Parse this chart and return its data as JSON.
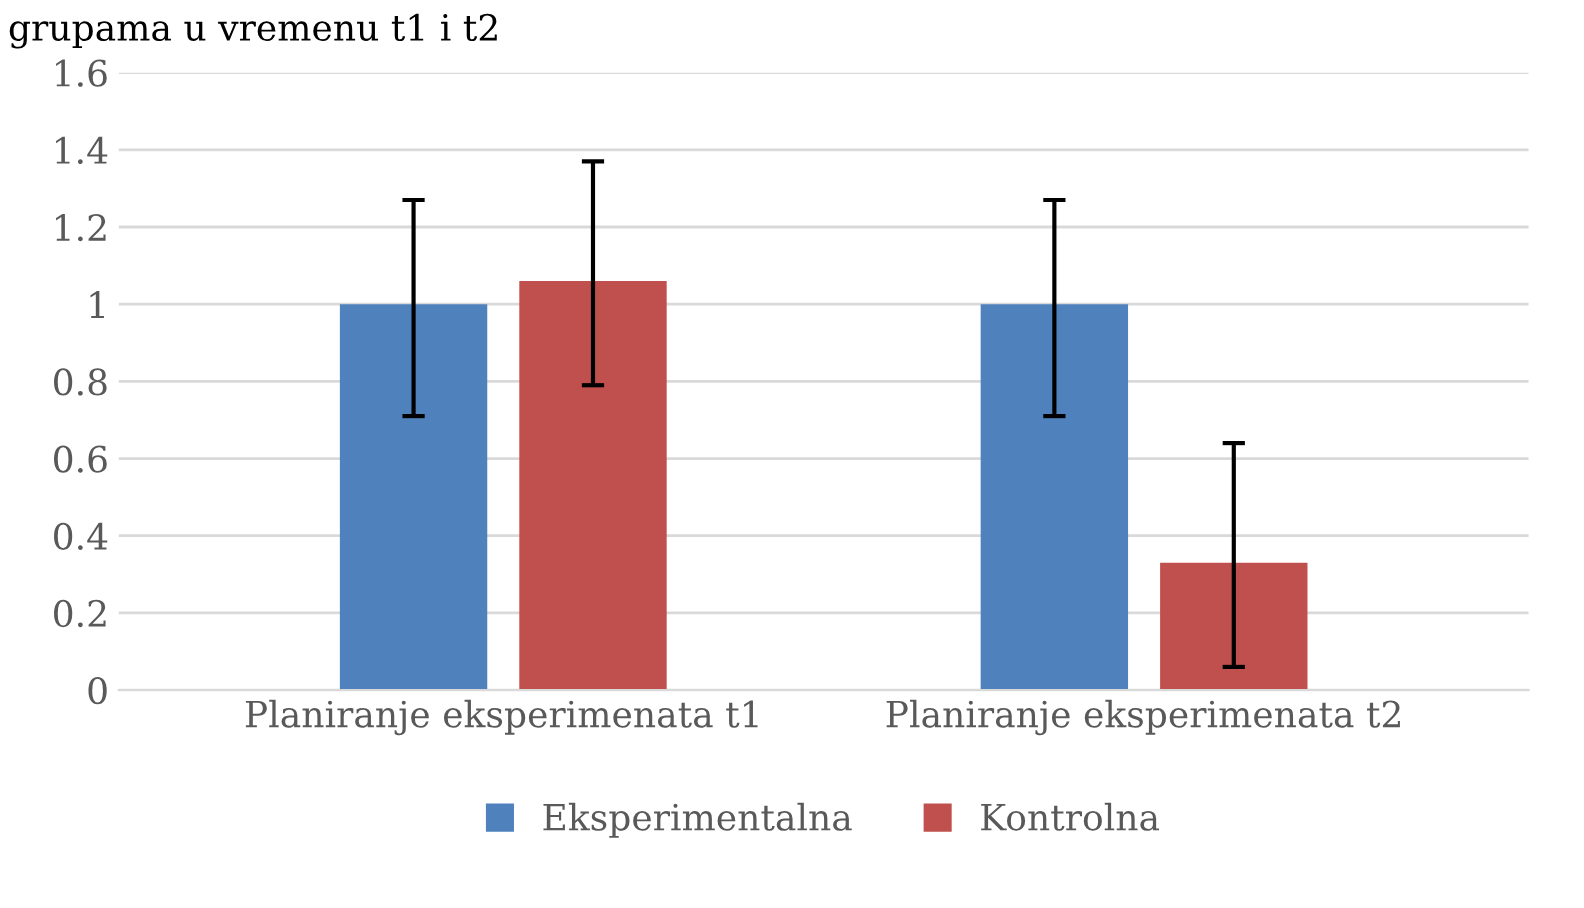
{
  "chart_data": {
    "type": "bar",
    "title": "grupama u vremenu t1 i t2",
    "categories": [
      "Planiranje eksperimenata t1",
      "Planiranje eksperimenata t2"
    ],
    "series": [
      {
        "name": "Eksperimentalna",
        "color": "#4f81bd",
        "values": [
          1,
          1
        ],
        "errors": [
          [
            0.71,
            1.27
          ],
          [
            0.71,
            1.27
          ]
        ]
      },
      {
        "name": "Kontrolna",
        "color": "#c0504d",
        "values": [
          1.06,
          0.33
        ],
        "errors": [
          [
            0.79,
            1.37
          ],
          [
            0.06,
            0.64
          ]
        ]
      }
    ],
    "ylim": [
      0,
      1.6
    ],
    "yticks": [
      0,
      0.2,
      0.4,
      0.6,
      0.8,
      1,
      1.2,
      1.4,
      1.6
    ],
    "grid": "y",
    "legend": "bottom"
  }
}
